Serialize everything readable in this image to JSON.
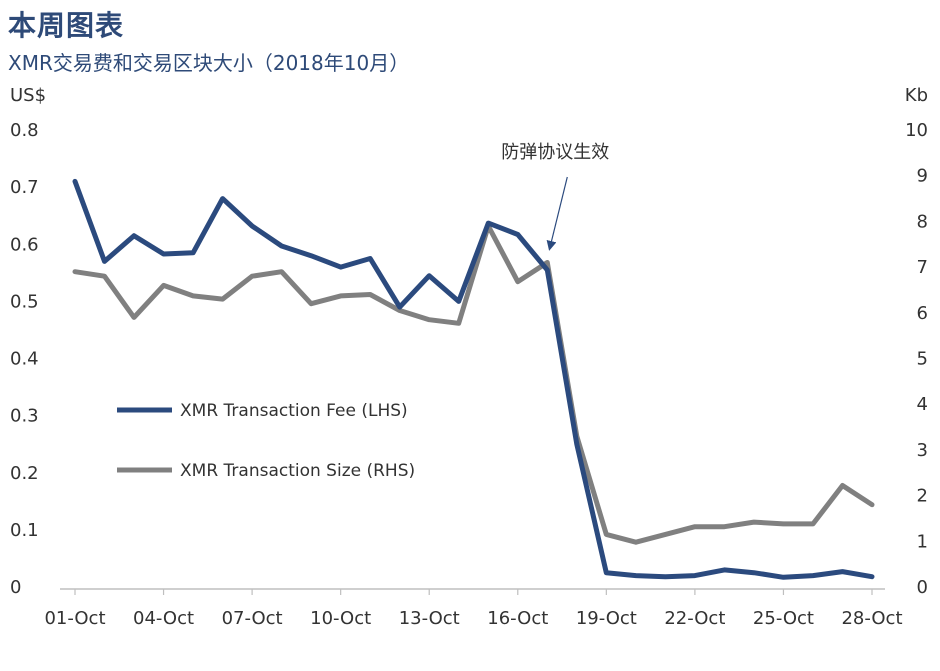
{
  "header": {
    "title": "本周图表",
    "subtitle": "XMR交易费和交易区块大小（2018年10月）"
  },
  "chart_data": {
    "type": "line",
    "title": "本周图表",
    "subtitle": "XMR交易费和交易区块大小（2018年10月）",
    "ylabel": "US$",
    "y2label": "Kb",
    "ylim": [
      0,
      0.8
    ],
    "y2lim": [
      0,
      10
    ],
    "y_ticks": [
      "0.8",
      "0.7",
      "0.6",
      "0.5",
      "0.4",
      "0.3",
      "0.2",
      "0.1",
      "0"
    ],
    "y2_ticks": [
      "10",
      "9",
      "8",
      "7",
      "6",
      "5",
      "4",
      "3",
      "2",
      "1",
      "0"
    ],
    "x_ticks": [
      "01-Oct",
      "04-Oct",
      "07-Oct",
      "10-Oct",
      "13-Oct",
      "16-Oct",
      "19-Oct",
      "22-Oct",
      "25-Oct",
      "28-Oct"
    ],
    "x": [
      "01-Oct",
      "02-Oct",
      "03-Oct",
      "04-Oct",
      "05-Oct",
      "06-Oct",
      "07-Oct",
      "08-Oct",
      "09-Oct",
      "10-Oct",
      "11-Oct",
      "12-Oct",
      "13-Oct",
      "14-Oct",
      "15-Oct",
      "16-Oct",
      "17-Oct",
      "18-Oct",
      "19-Oct",
      "20-Oct",
      "21-Oct",
      "22-Oct",
      "23-Oct",
      "24-Oct",
      "25-Oct",
      "26-Oct",
      "27-Oct",
      "28-Oct"
    ],
    "series": [
      {
        "name": "XMR Transaction Fee (LHS)",
        "axis": "left",
        "color": "#2b4a7e",
        "values": [
          0.71,
          0.57,
          0.615,
          0.583,
          0.585,
          0.68,
          0.632,
          0.597,
          0.58,
          0.56,
          0.575,
          0.49,
          0.545,
          0.5,
          0.637,
          0.617,
          0.555,
          0.25,
          0.025,
          0.02,
          0.018,
          0.02,
          0.03,
          0.025,
          0.017,
          0.02,
          0.027,
          0.018
        ]
      },
      {
        "name": "XMR Transaction Size (RHS)",
        "axis": "right",
        "color": "#808080",
        "values": [
          6.9,
          6.8,
          5.9,
          6.6,
          6.37,
          6.3,
          6.8,
          6.9,
          6.2,
          6.37,
          6.4,
          6.05,
          5.85,
          5.77,
          7.9,
          6.68,
          7.1,
          3.3,
          1.15,
          0.98,
          1.15,
          1.32,
          1.32,
          1.42,
          1.38,
          1.38,
          2.22,
          1.8
        ]
      }
    ],
    "annotations": [
      {
        "text": "防弹协议生效",
        "x": "17-Oct"
      }
    ],
    "legend_position": "middle-left",
    "grid": false
  }
}
